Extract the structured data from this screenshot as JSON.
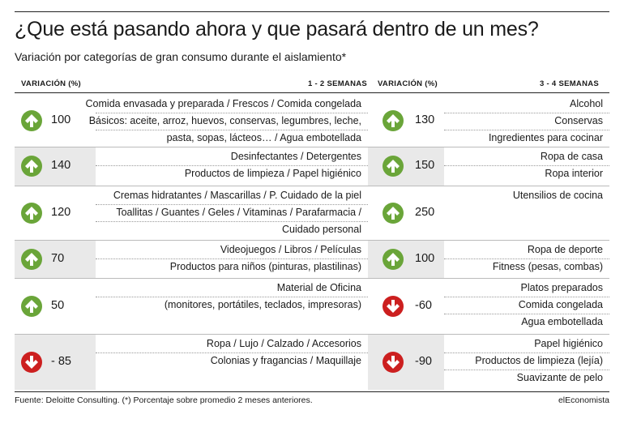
{
  "title": "¿Que está pasando ahora y que pasará dentro de un mes?",
  "subtitle": "Variación por categorías de gran consumo durante el aislamiento*",
  "headers": {
    "variation_left": "VARIACIÓN (%)",
    "period_left": "1 - 2 SEMANAS",
    "variation_right": "VARIACIÓN (%)",
    "period_right": "3 - 4 SEMANAS"
  },
  "rows": [
    {
      "left": {
        "direction": "up",
        "value": "100",
        "items": [
          "Comida envasada y preparada / Frescos / Comida congelada",
          "Básicos: aceite, arroz, huevos, conservas, legumbres, leche,",
          "pasta, sopas, lácteos… / Agua embotellada"
        ]
      },
      "right": {
        "direction": "up",
        "value": "130",
        "items": [
          "Alcohol",
          "Conservas",
          "Ingredientes para cocinar"
        ]
      }
    },
    {
      "left": {
        "direction": "up",
        "value": "140",
        "items": [
          "Desinfectantes / Detergentes",
          "Productos de limpieza / Papel higiénico"
        ]
      },
      "right": {
        "direction": "up",
        "value": "150",
        "items": [
          "Ropa de casa",
          "Ropa interior"
        ]
      }
    },
    {
      "left": {
        "direction": "up",
        "value": "120",
        "items": [
          "Cremas hidratantes / Mascarillas / P. Cuidado de la piel",
          "Toallitas / Guantes / Geles / Vitaminas / Parafarmacia /",
          "Cuidado personal"
        ]
      },
      "right": {
        "direction": "up",
        "value": "250",
        "items": [
          "Utensilios de cocina"
        ]
      }
    },
    {
      "left": {
        "direction": "up",
        "value": "70",
        "items": [
          "Videojuegos / Libros / Películas",
          "Productos para niños (pinturas, plastilinas)"
        ]
      },
      "right": {
        "direction": "up",
        "value": "100",
        "items": [
          "Ropa de deporte",
          "Fitness (pesas, combas)"
        ]
      }
    },
    {
      "left": {
        "direction": "up",
        "value": "50",
        "items": [
          "Material de Oficina",
          "(monitores, portátiles, teclados, impresoras)"
        ]
      },
      "right": {
        "direction": "down",
        "value": "-60",
        "items": [
          "Platos preparados",
          "Comida congelada",
          "Agua embotellada"
        ]
      }
    },
    {
      "left": {
        "direction": "down",
        "value": "- 85",
        "items": [
          "Ropa / Lujo / Calzado / Accesorios",
          "Colonias y fragancias / Maquillaje"
        ]
      },
      "right": {
        "direction": "down",
        "value": "-90",
        "items": [
          "Papel higiénico",
          "Productos de limpieza (lejía)",
          "Suavizante de pelo"
        ]
      }
    }
  ],
  "footer": {
    "source": "Fuente: Deloitte Consulting. (*) Porcentaje sobre promedio 2 meses anteriores.",
    "brand": "elEconomista"
  },
  "colors": {
    "up": "#6aa539",
    "down": "#cc1f1f",
    "shade": "#e9e9e9"
  }
}
